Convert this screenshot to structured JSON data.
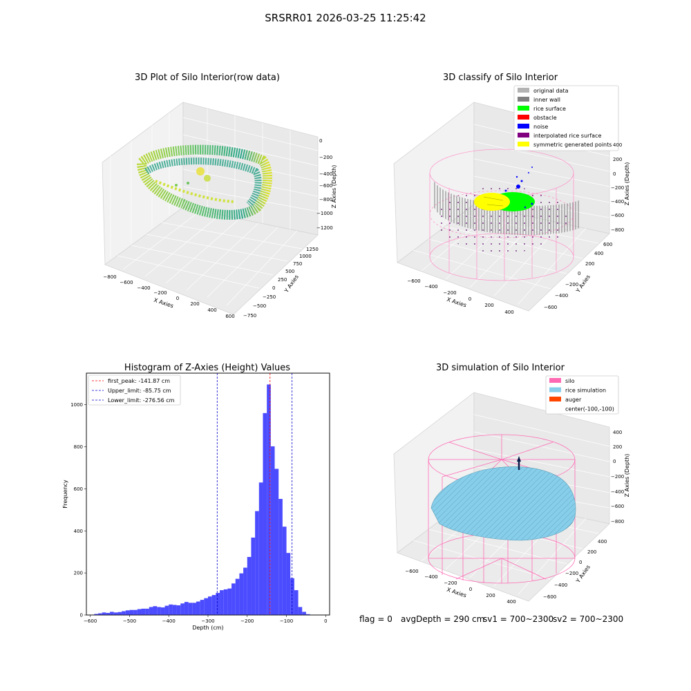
{
  "suptitle": "SRSRR01 2026-03-25 11:25:42",
  "footer": {
    "flag": "flag = 0",
    "avg": "avgDepth = 290 cm",
    "sv1": "sv1 = 700~2300",
    "sv2": "sv2 = 700~2300"
  },
  "chart_data": [
    {
      "type": "scatter",
      "title": "3D Plot of Silo Interior(row data)",
      "xlabel": "X Axies",
      "ylabel": "Y Axies",
      "zlabel": "Z Axies (Depth)",
      "x_ticks": [
        "−800",
        "−600",
        "−400",
        "−200",
        "0",
        "200",
        "400",
        "600"
      ],
      "y_ticks": [
        "−750",
        "−500",
        "−250",
        "0",
        "250",
        "500",
        "750",
        "1000",
        "1250"
      ],
      "z_ticks": [
        "0",
        "−200",
        "−400",
        "−600",
        "−800",
        "−1000",
        "−1200"
      ]
    },
    {
      "type": "scatter",
      "title": "3D classify of Silo Interior",
      "xlabel": "X Axies",
      "ylabel": "Y Axies",
      "zlabel": "Z Axies (Depth)",
      "x_ticks": [
        "−600",
        "−400",
        "−200",
        "0",
        "200",
        "400"
      ],
      "y_ticks": [
        "−600",
        "−400",
        "−200",
        "0",
        "200",
        "400",
        "600"
      ],
      "z_ticks": [
        "400",
        "200",
        "0",
        "−200",
        "−400",
        "−600",
        "−800"
      ],
      "legend": [
        {
          "name": "original data",
          "color": "#b3b3b3"
        },
        {
          "name": "inner wall",
          "color": "#808080"
        },
        {
          "name": "rice surface",
          "color": "#00ff00"
        },
        {
          "name": "obstacle",
          "color": "#ff0000"
        },
        {
          "name": "noise",
          "color": "#0000ff"
        },
        {
          "name": "interpolated rice surface",
          "color": "#800080"
        },
        {
          "name": "symmetric generated points",
          "color": "#ffff00"
        }
      ],
      "legend_position": "top-right"
    },
    {
      "type": "bar",
      "title": "Histogram of Z-Axies (Height) Values",
      "xlabel": "Depth (cm)",
      "ylabel": "Frequency",
      "xlim": [
        -610,
        10
      ],
      "ylim": [
        0,
        1150
      ],
      "x_ticks": [
        -600,
        -500,
        -400,
        -300,
        -200,
        -100,
        0
      ],
      "y_ticks": [
        0,
        200,
        400,
        600,
        800,
        1000
      ],
      "bin_width": 10,
      "bin_start": -585,
      "values": [
        5,
        8,
        12,
        10,
        15,
        12,
        14,
        18,
        22,
        24,
        24,
        28,
        30,
        30,
        38,
        42,
        38,
        36,
        44,
        50,
        48,
        46,
        55,
        62,
        58,
        58,
        64,
        72,
        80,
        88,
        95,
        105,
        118,
        122,
        126,
        150,
        172,
        198,
        225,
        276,
        368,
        494,
        630,
        960,
        1096,
        802,
        695,
        552,
        420,
        295,
        175,
        118,
        38,
        15,
        4
      ],
      "color": "#4c4cff",
      "lines": [
        {
          "label": "first_peak: -141.87 cm",
          "value": -141.87,
          "color": "#ff0000"
        },
        {
          "label": "Upper_limit: -85.75 cm",
          "value": -85.75,
          "color": "#0000cc"
        },
        {
          "label": "Lower_limit: -276.56 cm",
          "value": -276.56,
          "color": "#0000cc"
        }
      ],
      "legend_position": "top-left"
    },
    {
      "type": "scatter",
      "title": "3D simulation of Silo Interior",
      "xlabel": "X Axies",
      "ylabel": "Y Axies",
      "zlabel": "Z Axies (Depth)",
      "x_ticks": [
        "−600",
        "−400",
        "−200",
        "0",
        "200",
        "400"
      ],
      "y_ticks": [
        "−600",
        "−400",
        "−200",
        "0",
        "200",
        "400"
      ],
      "z_ticks": [
        "400",
        "200",
        "0",
        "−200",
        "−400",
        "−600",
        "−800"
      ],
      "legend": [
        {
          "name": "silo",
          "color": "#ff69b4"
        },
        {
          "name": "rice simulation",
          "color": "#87ceeb"
        },
        {
          "name": "auger",
          "color": "#ff4500"
        },
        {
          "name": "center(-100,-100)",
          "color": ""
        }
      ],
      "legend_position": "top-right"
    }
  ]
}
